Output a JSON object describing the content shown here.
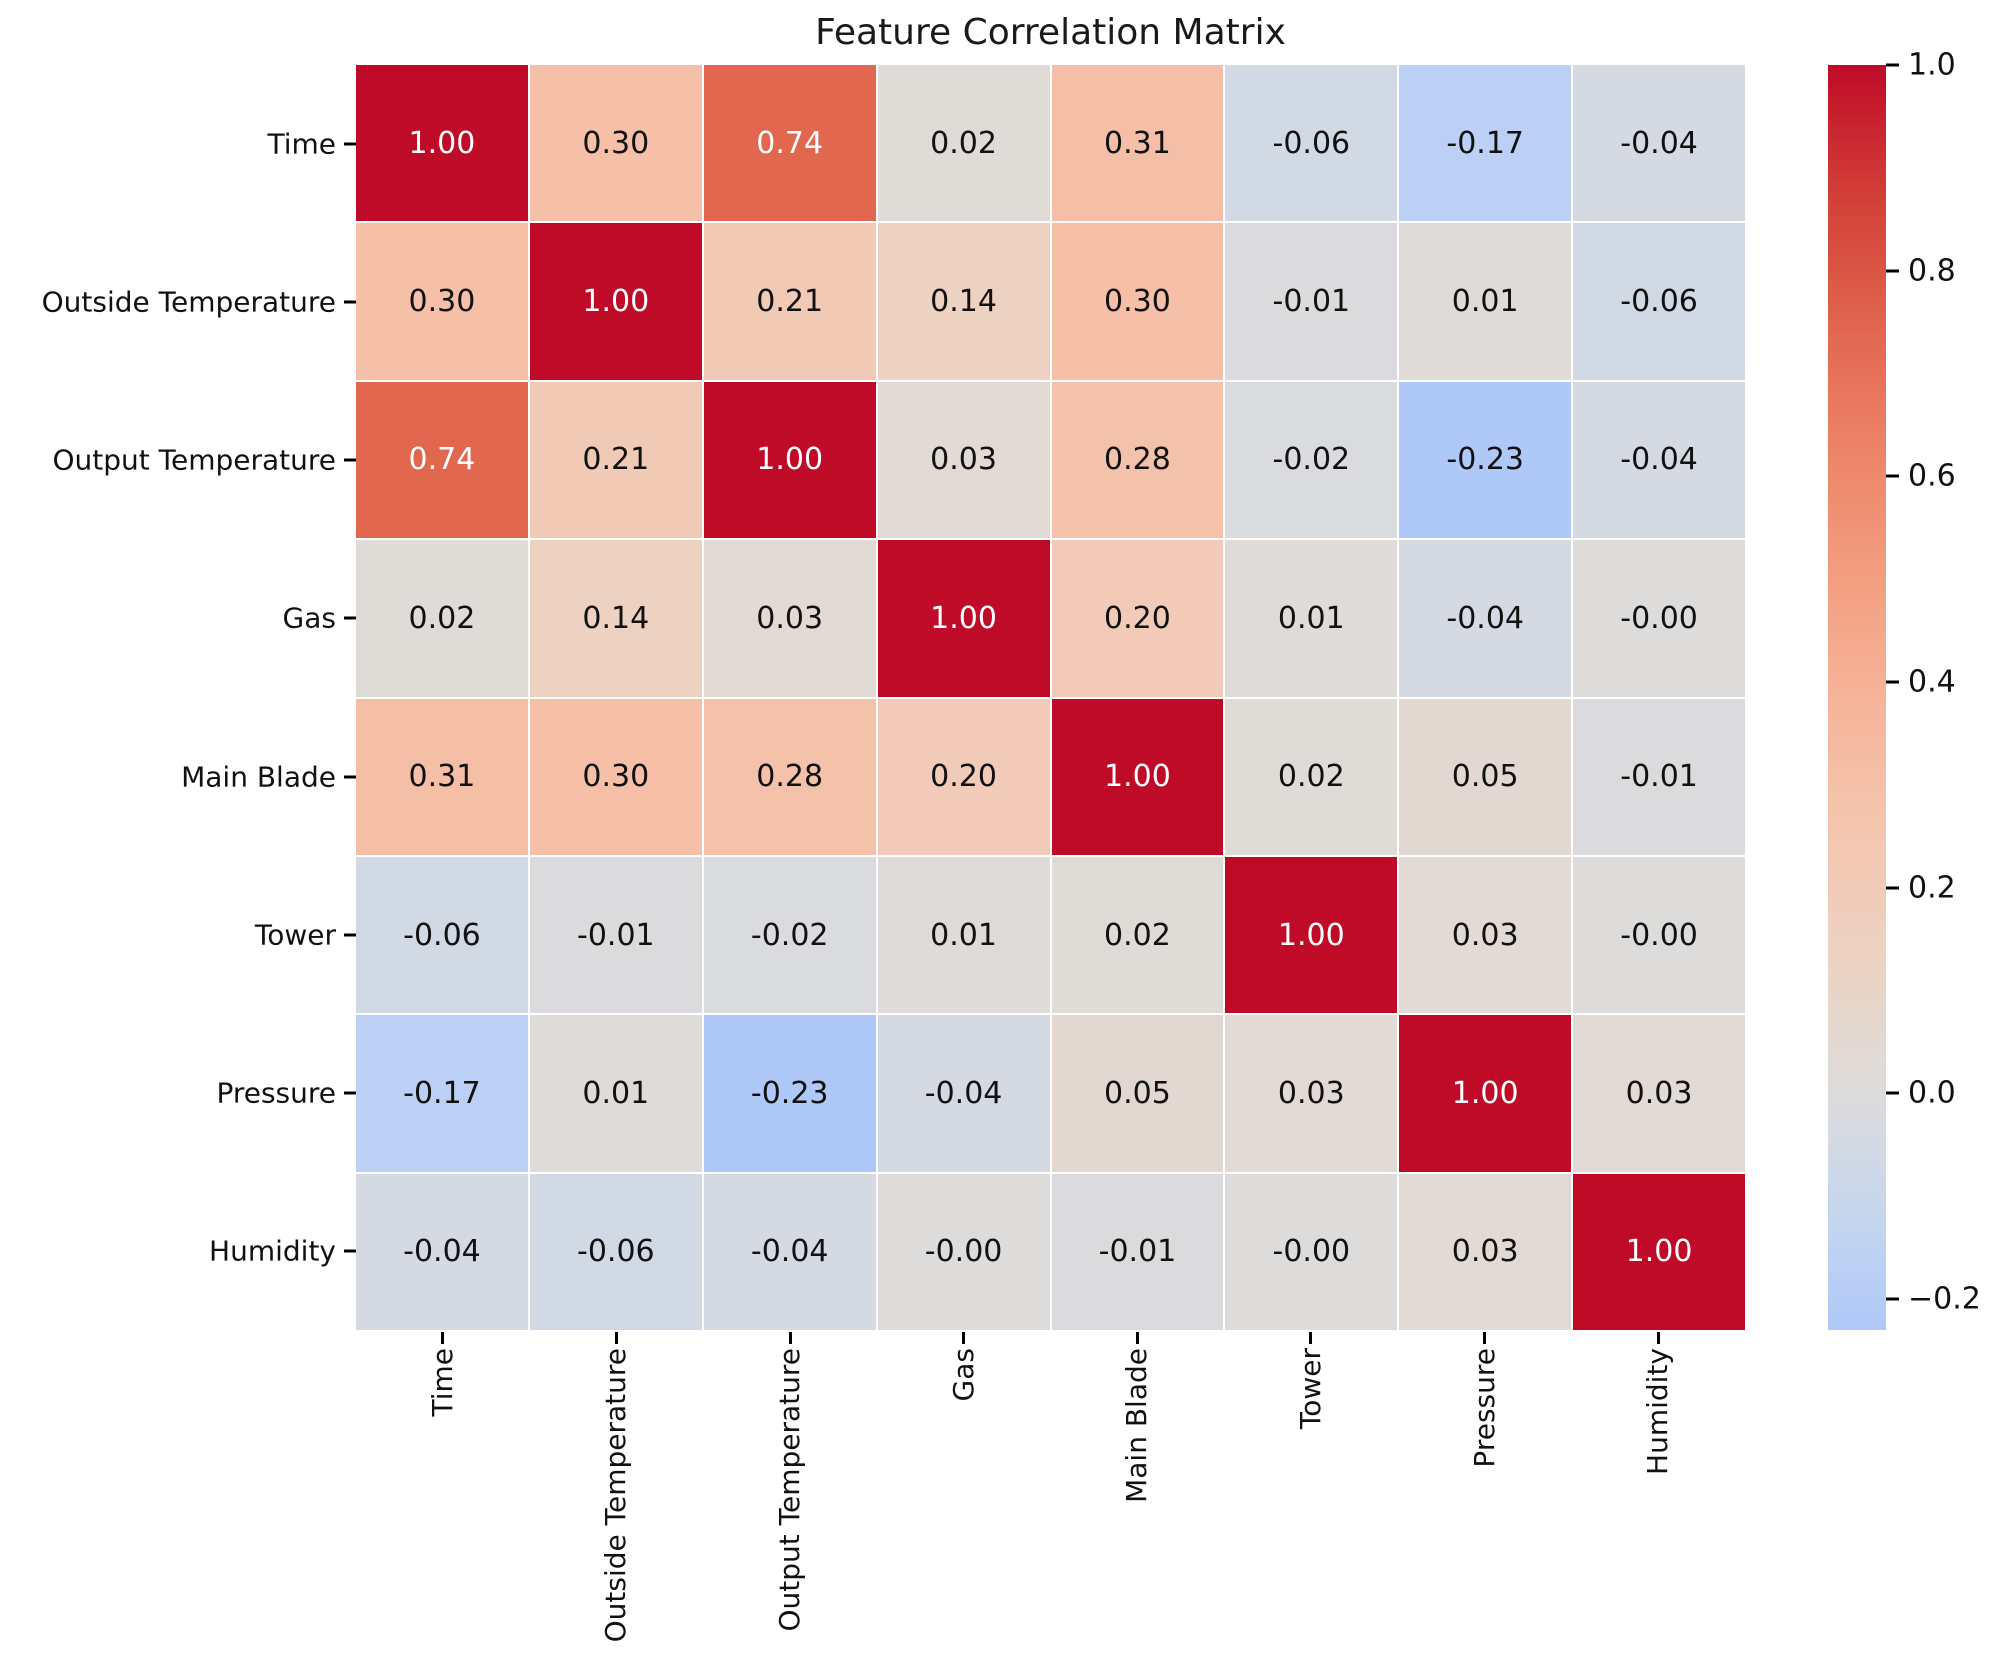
{
  "title": "Feature Correlation Matrix",
  "chart_data": {
    "type": "heatmap",
    "title": "Feature Correlation Matrix",
    "categories": [
      "Time",
      "Outside Temperature",
      "Output Temperature",
      "Gas",
      "Main Blade",
      "Tower",
      "Pressure",
      "Humidity"
    ],
    "matrix": [
      [
        1.0,
        0.3,
        0.74,
        0.02,
        0.31,
        -0.06,
        -0.17,
        -0.04
      ],
      [
        0.3,
        1.0,
        0.21,
        0.14,
        0.3,
        -0.01,
        0.01,
        -0.06
      ],
      [
        0.74,
        0.21,
        1.0,
        0.03,
        0.28,
        -0.02,
        -0.23,
        -0.04
      ],
      [
        0.02,
        0.14,
        0.03,
        1.0,
        0.2,
        0.01,
        -0.04,
        -0.0
      ],
      [
        0.31,
        0.3,
        0.28,
        0.2,
        1.0,
        0.02,
        0.05,
        -0.01
      ],
      [
        -0.06,
        -0.01,
        -0.02,
        0.01,
        0.02,
        1.0,
        0.03,
        -0.0
      ],
      [
        -0.17,
        0.01,
        -0.23,
        -0.04,
        0.05,
        0.03,
        1.0,
        0.03
      ],
      [
        -0.04,
        -0.06,
        -0.04,
        -0.0,
        -0.01,
        -0.0,
        0.03,
        1.0
      ]
    ],
    "cell_labels": [
      [
        "1.00",
        "0.30",
        "0.74",
        "0.02",
        "0.31",
        "-0.06",
        "-0.17",
        "-0.04"
      ],
      [
        "0.30",
        "1.00",
        "0.21",
        "0.14",
        "0.30",
        "-0.01",
        "0.01",
        "-0.06"
      ],
      [
        "0.74",
        "0.21",
        "1.00",
        "0.03",
        "0.28",
        "-0.02",
        "-0.23",
        "-0.04"
      ],
      [
        "0.02",
        "0.14",
        "0.03",
        "1.00",
        "0.20",
        "0.01",
        "-0.04",
        "-0.00"
      ],
      [
        "0.31",
        "0.30",
        "0.28",
        "0.20",
        "1.00",
        "0.02",
        "0.05",
        "-0.01"
      ],
      [
        "-0.06",
        "-0.01",
        "-0.02",
        "0.01",
        "0.02",
        "1.00",
        "0.03",
        "-0.00"
      ],
      [
        "-0.17",
        "0.01",
        "-0.23",
        "-0.04",
        "0.05",
        "0.03",
        "1.00",
        "0.03"
      ],
      [
        "-0.04",
        "-0.06",
        "-0.04",
        "-0.00",
        "-0.01",
        "-0.00",
        "0.03",
        "1.00"
      ]
    ],
    "colormap": "coolwarm",
    "center": 0,
    "colorbar": {
      "vmin": -0.23,
      "vmax": 1.0,
      "tick_values": [
        1.0,
        0.8,
        0.6,
        0.4,
        0.2,
        0.0,
        -0.2
      ],
      "tick_labels": [
        "1.0",
        "0.8",
        "0.6",
        "0.4",
        "0.2",
        "0.0",
        "−0.2"
      ]
    },
    "colors": {
      "max_red": "#c00b28",
      "mid_grey": "#dddcdb",
      "min_blue": "#aec9f8"
    },
    "layout": {
      "grid": false,
      "legend_position": "right-colorbar",
      "x_tick_rotation": 90
    }
  }
}
